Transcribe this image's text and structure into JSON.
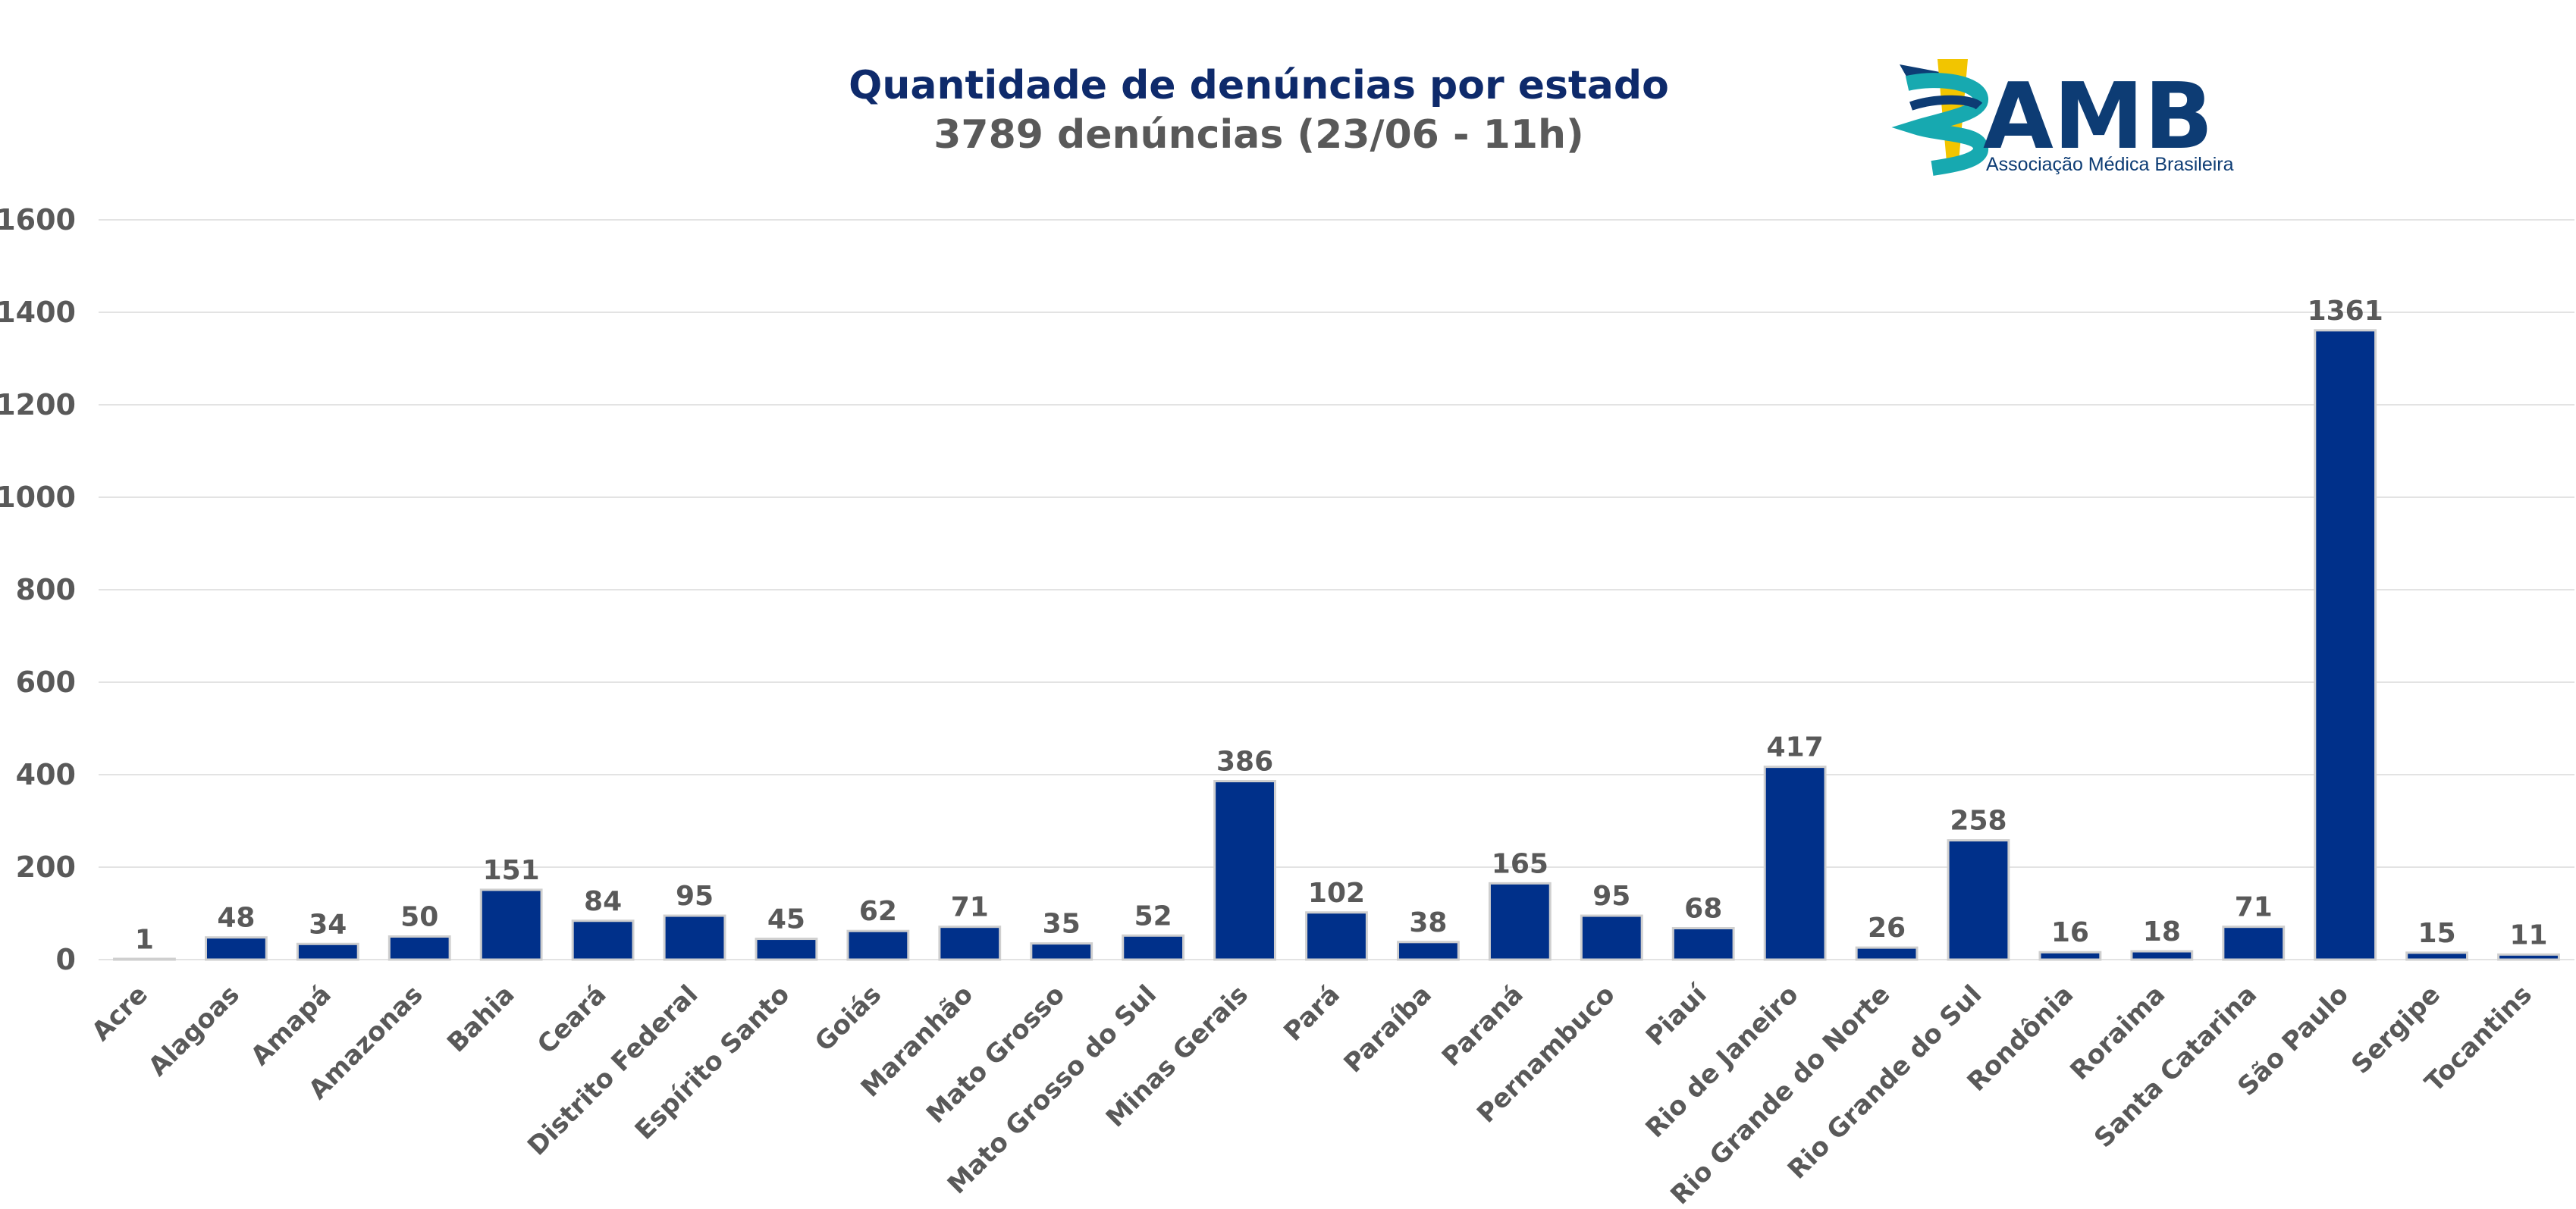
{
  "title": "Quantidade de denúncias por estado",
  "subtitle": "3789 denúncias (23/06 - 11h)",
  "logo": {
    "text": "AMB",
    "tagline": "Associação Médica Brasileira",
    "colors": {
      "text": "#0d3c74",
      "ribbon_teal": "#17a9b0",
      "ribbon_yellow": "#f2c500",
      "ribbon_navy": "#0d3c74"
    }
  },
  "colors": {
    "title": "#0e2a6b",
    "subtitle": "#595959",
    "bar": "#00308a",
    "bar_edge": "#cfcfcf",
    "grid": "#e3e3e3",
    "text": "#595959"
  },
  "chart_data": {
    "type": "bar",
    "title": "Quantidade de denúncias por estado",
    "subtitle": "3789 denúncias (23/06 - 11h)",
    "xlabel": "",
    "ylabel": "",
    "ylim": [
      0,
      1600
    ],
    "yticks": [
      0,
      200,
      400,
      600,
      800,
      1000,
      1200,
      1400,
      1600
    ],
    "grid": true,
    "categories": [
      "Acre",
      "Alagoas",
      "Amapá",
      "Amazonas",
      "Bahia",
      "Ceará",
      "Distrito Federal",
      "Espírito Santo",
      "Goiás",
      "Maranhão",
      "Mato Grosso",
      "Mato Grosso do Sul",
      "Minas Gerais",
      "Pará",
      "Paraíba",
      "Paraná",
      "Pernambuco",
      "Piauí",
      "Rio de Janeiro",
      "Rio Grande do Norte",
      "Rio Grande do Sul",
      "Rondônia",
      "Roraima",
      "Santa Catarina",
      "São Paulo",
      "Sergipe",
      "Tocantins"
    ],
    "values": [
      1,
      48,
      34,
      50,
      151,
      84,
      95,
      45,
      62,
      71,
      35,
      52,
      386,
      102,
      38,
      165,
      95,
      68,
      417,
      26,
      258,
      16,
      18,
      71,
      1361,
      15,
      11
    ]
  }
}
